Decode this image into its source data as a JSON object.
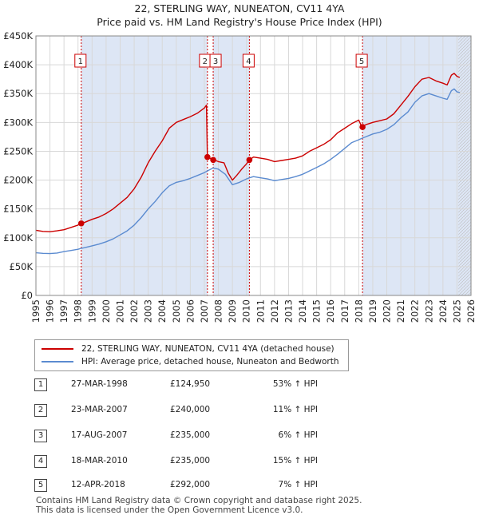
{
  "title": {
    "line1": "22, STERLING WAY, NUNEATON, CV11 4YA",
    "line2": "Price paid vs. HM Land Registry's House Price Index (HPI)"
  },
  "chart_data": {
    "type": "line",
    "xlim": [
      1995,
      2026
    ],
    "ylim": [
      0,
      450000
    ],
    "y_ticks": [
      0,
      50000,
      100000,
      150000,
      200000,
      250000,
      300000,
      350000,
      400000,
      450000
    ],
    "y_tick_labels": [
      "£0",
      "£50K",
      "£100K",
      "£150K",
      "£200K",
      "£250K",
      "£300K",
      "£350K",
      "£400K",
      "£450K"
    ],
    "x_ticks": [
      1995,
      1996,
      1997,
      1998,
      1999,
      2000,
      2001,
      2002,
      2003,
      2004,
      2005,
      2006,
      2007,
      2008,
      2009,
      2010,
      2011,
      2012,
      2013,
      2014,
      2015,
      2016,
      2017,
      2018,
      2019,
      2020,
      2021,
      2022,
      2023,
      2024,
      2025,
      2026
    ],
    "grid": true,
    "future_hatch_from": 2025.1,
    "colors": {
      "property": "#cc0000",
      "hpi": "#5b8bd0",
      "shade": "#dde6f5",
      "vline": "#cc0000"
    },
    "series": [
      {
        "name": "22, STERLING WAY, NUNEATON, CV11 4YA (detached house)",
        "color": "#cc0000",
        "points": [
          [
            1995.0,
            113000
          ],
          [
            1995.5,
            111000
          ],
          [
            1996.0,
            110500
          ],
          [
            1996.5,
            112000
          ],
          [
            1997.0,
            114000
          ],
          [
            1997.5,
            118000
          ],
          [
            1998.0,
            122000
          ],
          [
            1998.23,
            124950
          ],
          [
            1998.5,
            127000
          ],
          [
            1999.0,
            132000
          ],
          [
            1999.5,
            136000
          ],
          [
            2000.0,
            142000
          ],
          [
            2000.5,
            150000
          ],
          [
            2001.0,
            160000
          ],
          [
            2001.5,
            170000
          ],
          [
            2002.0,
            185000
          ],
          [
            2002.5,
            205000
          ],
          [
            2003.0,
            230000
          ],
          [
            2003.5,
            250000
          ],
          [
            2004.0,
            268000
          ],
          [
            2004.5,
            290000
          ],
          [
            2005.0,
            300000
          ],
          [
            2005.5,
            305000
          ],
          [
            2006.0,
            310000
          ],
          [
            2006.5,
            316000
          ],
          [
            2007.0,
            325000
          ],
          [
            2007.15,
            330000
          ],
          [
            2007.22,
            240000
          ],
          [
            2007.4,
            238000
          ],
          [
            2007.63,
            235000
          ],
          [
            2007.8,
            234000
          ],
          [
            2008.0,
            232000
          ],
          [
            2008.4,
            230000
          ],
          [
            2008.7,
            212000
          ],
          [
            2009.0,
            200000
          ],
          [
            2009.3,
            208000
          ],
          [
            2009.7,
            220000
          ],
          [
            2010.0,
            228000
          ],
          [
            2010.21,
            235000
          ],
          [
            2010.5,
            240000
          ],
          [
            2011.0,
            238000
          ],
          [
            2011.5,
            236000
          ],
          [
            2012.0,
            232000
          ],
          [
            2012.5,
            234000
          ],
          [
            2013.0,
            236000
          ],
          [
            2013.5,
            238000
          ],
          [
            2014.0,
            242000
          ],
          [
            2014.5,
            250000
          ],
          [
            2015.0,
            256000
          ],
          [
            2015.5,
            262000
          ],
          [
            2016.0,
            270000
          ],
          [
            2016.5,
            282000
          ],
          [
            2017.0,
            290000
          ],
          [
            2017.5,
            298000
          ],
          [
            2018.0,
            304000
          ],
          [
            2018.22,
            292000
          ],
          [
            2018.5,
            296000
          ],
          [
            2019.0,
            300000
          ],
          [
            2019.5,
            303000
          ],
          [
            2020.0,
            306000
          ],
          [
            2020.5,
            315000
          ],
          [
            2021.0,
            330000
          ],
          [
            2021.5,
            345000
          ],
          [
            2022.0,
            362000
          ],
          [
            2022.5,
            375000
          ],
          [
            2023.0,
            378000
          ],
          [
            2023.5,
            372000
          ],
          [
            2024.0,
            368000
          ],
          [
            2024.3,
            365000
          ],
          [
            2024.6,
            382000
          ],
          [
            2024.8,
            385000
          ],
          [
            2025.0,
            380000
          ],
          [
            2025.2,
            378000
          ]
        ]
      },
      {
        "name": "HPI: Average price, detached house, Nuneaton and Bedworth",
        "color": "#5b8bd0",
        "points": [
          [
            1995.0,
            74000
          ],
          [
            1995.5,
            73000
          ],
          [
            1996.0,
            72500
          ],
          [
            1996.5,
            73500
          ],
          [
            1997.0,
            76000
          ],
          [
            1997.5,
            78000
          ],
          [
            1998.0,
            80000
          ],
          [
            1998.23,
            81700
          ],
          [
            1998.5,
            83000
          ],
          [
            1999.0,
            86000
          ],
          [
            1999.5,
            89000
          ],
          [
            2000.0,
            93000
          ],
          [
            2000.5,
            98000
          ],
          [
            2001.0,
            105000
          ],
          [
            2001.5,
            112000
          ],
          [
            2002.0,
            122000
          ],
          [
            2002.5,
            135000
          ],
          [
            2003.0,
            150000
          ],
          [
            2003.5,
            163000
          ],
          [
            2004.0,
            178000
          ],
          [
            2004.5,
            190000
          ],
          [
            2005.0,
            196000
          ],
          [
            2005.5,
            199000
          ],
          [
            2006.0,
            203000
          ],
          [
            2006.5,
            208000
          ],
          [
            2007.0,
            213000
          ],
          [
            2007.22,
            216000
          ],
          [
            2007.63,
            221000
          ],
          [
            2008.0,
            219000
          ],
          [
            2008.5,
            210000
          ],
          [
            2009.0,
            192000
          ],
          [
            2009.5,
            196000
          ],
          [
            2010.0,
            202000
          ],
          [
            2010.21,
            204000
          ],
          [
            2010.5,
            206000
          ],
          [
            2011.0,
            204000
          ],
          [
            2011.5,
            202000
          ],
          [
            2012.0,
            199000
          ],
          [
            2012.5,
            201000
          ],
          [
            2013.0,
            203000
          ],
          [
            2013.5,
            206000
          ],
          [
            2014.0,
            210000
          ],
          [
            2014.5,
            216000
          ],
          [
            2015.0,
            222000
          ],
          [
            2015.5,
            228000
          ],
          [
            2016.0,
            236000
          ],
          [
            2016.5,
            245000
          ],
          [
            2017.0,
            255000
          ],
          [
            2017.5,
            265000
          ],
          [
            2018.0,
            270000
          ],
          [
            2018.27,
            272900
          ],
          [
            2018.5,
            275000
          ],
          [
            2019.0,
            280000
          ],
          [
            2019.5,
            283000
          ],
          [
            2020.0,
            288000
          ],
          [
            2020.5,
            296000
          ],
          [
            2021.0,
            308000
          ],
          [
            2021.5,
            318000
          ],
          [
            2022.0,
            335000
          ],
          [
            2022.5,
            346000
          ],
          [
            2023.0,
            350000
          ],
          [
            2023.5,
            346000
          ],
          [
            2024.0,
            342000
          ],
          [
            2024.3,
            340000
          ],
          [
            2024.6,
            355000
          ],
          [
            2024.8,
            358000
          ],
          [
            2025.0,
            353000
          ],
          [
            2025.2,
            352000
          ]
        ]
      }
    ],
    "sale_markers": [
      {
        "label": "1",
        "x": 1998.23,
        "price": 124950
      },
      {
        "label": "2",
        "x": 2007.22,
        "price": 240000
      },
      {
        "label": "3",
        "x": 2007.63,
        "price": 235000
      },
      {
        "label": "4",
        "x": 2010.21,
        "price": 235000
      },
      {
        "label": "5",
        "x": 2018.27,
        "price": 292000
      }
    ],
    "shaded_spans": [
      [
        1998.23,
        2007.22
      ],
      [
        2007.63,
        2010.21
      ],
      [
        2018.27,
        2026
      ]
    ]
  },
  "legend": {
    "property_label": "22, STERLING WAY, NUNEATON, CV11 4YA (detached house)",
    "hpi_label": "HPI: Average price, detached house, Nuneaton and Bedworth"
  },
  "sales": [
    {
      "num": "1",
      "date": "27-MAR-1998",
      "price": "£124,950",
      "hpi": "53% ↑ HPI"
    },
    {
      "num": "2",
      "date": "23-MAR-2007",
      "price": "£240,000",
      "hpi": "11% ↑ HPI"
    },
    {
      "num": "3",
      "date": "17-AUG-2007",
      "price": "£235,000",
      "hpi": "6% ↑ HPI"
    },
    {
      "num": "4",
      "date": "18-MAR-2010",
      "price": "£235,000",
      "hpi": "15% ↑ HPI"
    },
    {
      "num": "5",
      "date": "12-APR-2018",
      "price": "£292,000",
      "hpi": "7% ↑ HPI"
    }
  ],
  "footer": {
    "line1": "Contains HM Land Registry data © Crown copyright and database right 2025.",
    "line2": "This data is licensed under the Open Government Licence v3.0."
  }
}
